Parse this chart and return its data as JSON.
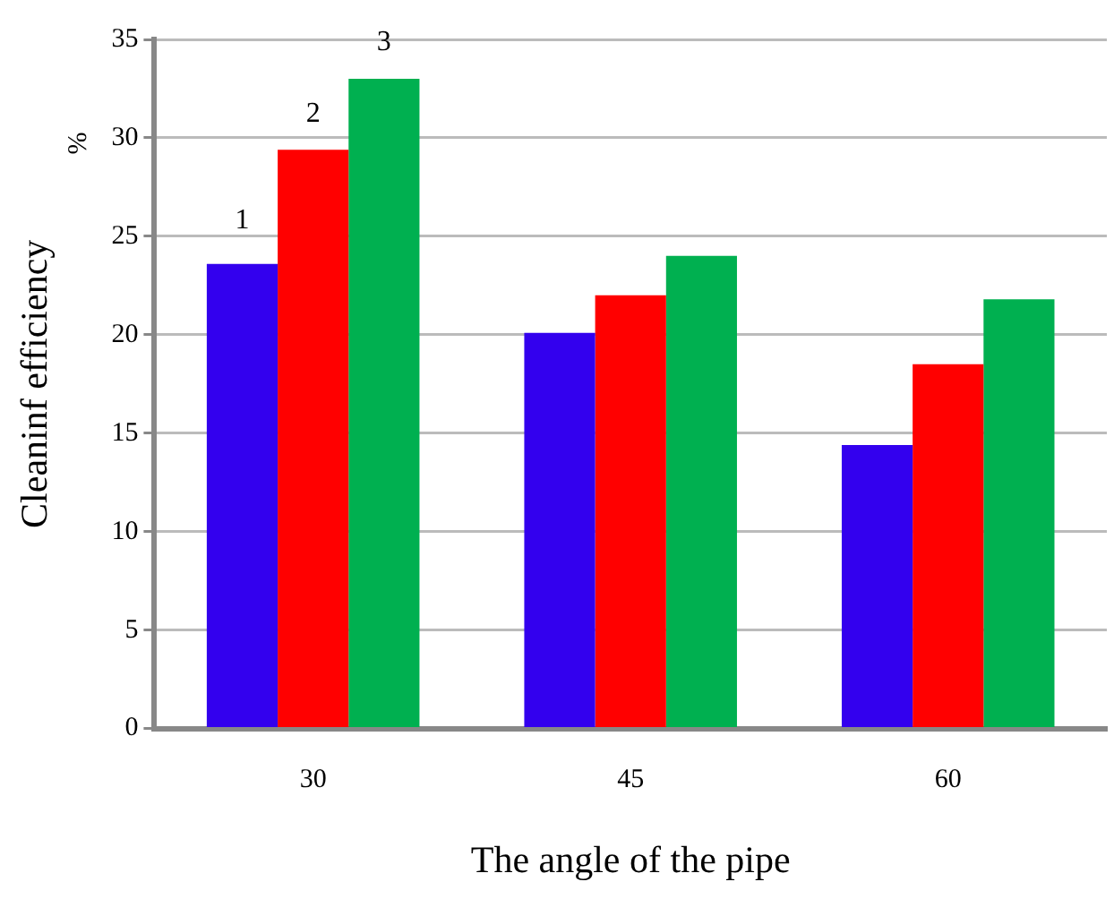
{
  "chart_data": {
    "type": "bar",
    "xlabel": "The angle of the pipe",
    "ylabel": "Cleaninf efficiency",
    "annotations": [
      "%"
    ],
    "categories": [
      "30",
      "45",
      "60"
    ],
    "series": [
      {
        "name": "1",
        "color": "#3300ee",
        "values": [
          23.6,
          20.1,
          14.4
        ]
      },
      {
        "name": "2",
        "color": "#ff0000",
        "values": [
          29.4,
          22.0,
          18.5
        ]
      },
      {
        "name": "3",
        "color": "#00b050",
        "values": [
          33.0,
          24.0,
          21.8
        ]
      }
    ],
    "ylim": [
      0,
      35
    ],
    "yticks": [
      0,
      5,
      10,
      15,
      20,
      25,
      30,
      35
    ],
    "grid": "y",
    "legend": false
  }
}
